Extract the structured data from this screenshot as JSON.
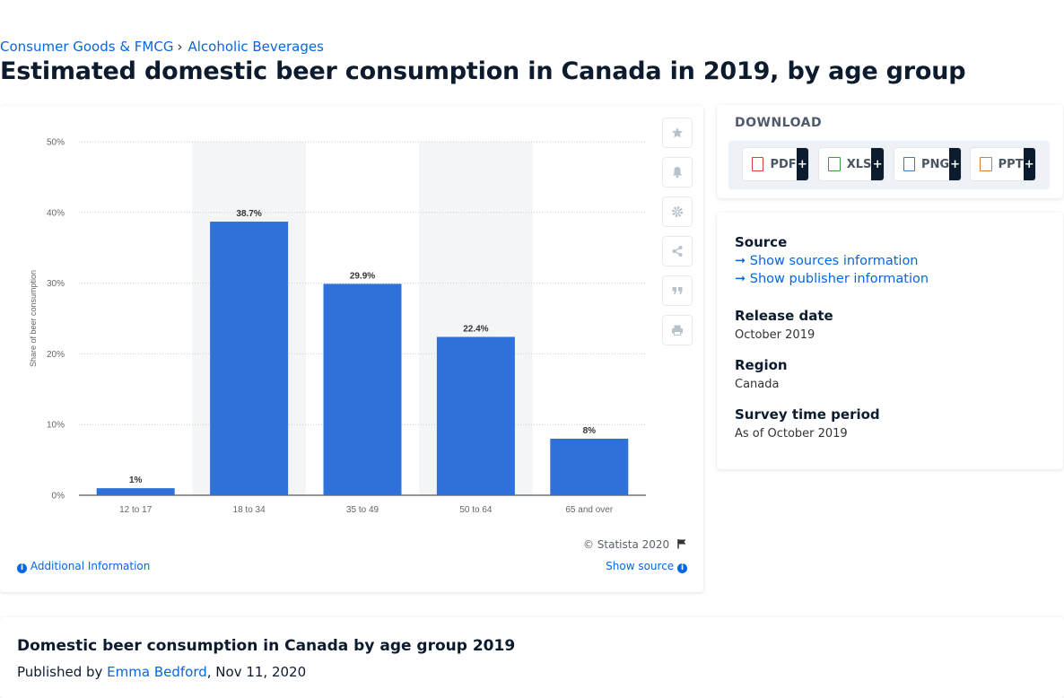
{
  "breadcrumb": {
    "item1": "Consumer Goods & FMCG",
    "item2": "Alcoholic Beverages",
    "separator": "›"
  },
  "page_title": "Estimated domestic beer consumption in Canada in 2019, by age group",
  "chart_data": {
    "type": "bar",
    "categories": [
      "12 to 17",
      "18 to 34",
      "35 to 49",
      "50 to 64",
      "65 and over"
    ],
    "values": [
      1,
      38.7,
      29.9,
      22.4,
      8
    ],
    "value_labels": [
      "1%",
      "38.7%",
      "29.9%",
      "22.4%",
      "8%"
    ],
    "ylabel": "Share of beer consumption",
    "yticks": [
      "0%",
      "10%",
      "20%",
      "30%",
      "40%",
      "50%"
    ],
    "ylim": [
      0,
      50
    ],
    "bar_color": "#3071d9",
    "grid": true
  },
  "chart_footer": {
    "credit": "© Statista 2020",
    "additional_info": "Additional Information",
    "show_source": "Show source"
  },
  "toolbar": [
    "star-icon",
    "bell-icon",
    "gear-icon",
    "share-icon",
    "quote-icon",
    "print-icon"
  ],
  "download": {
    "title": "DOWNLOAD",
    "buttons": [
      {
        "label": "PDF",
        "icon": "pdf-file-icon",
        "color": "#e03b3b"
      },
      {
        "label": "XLS",
        "icon": "xls-file-icon",
        "color": "#3a9b3a"
      },
      {
        "label": "PNG",
        "icon": "png-file-icon",
        "color": "#3a78c9"
      },
      {
        "label": "PPT",
        "icon": "ppt-file-icon",
        "color": "#e07b2a"
      }
    ],
    "plus": "+"
  },
  "meta": {
    "source_heading": "Source",
    "sources_link": "Show sources information",
    "publisher_link": "Show publisher information",
    "release_heading": "Release date",
    "release_value": "October 2019",
    "region_heading": "Region",
    "region_value": "Canada",
    "period_heading": "Survey time period",
    "period_value": "As of October 2019"
  },
  "bottom": {
    "title": "Domestic beer consumption in Canada by age group 2019",
    "published_prefix": "Published by",
    "author": "Emma Bedford",
    "date": ", Nov 11, 2020"
  }
}
